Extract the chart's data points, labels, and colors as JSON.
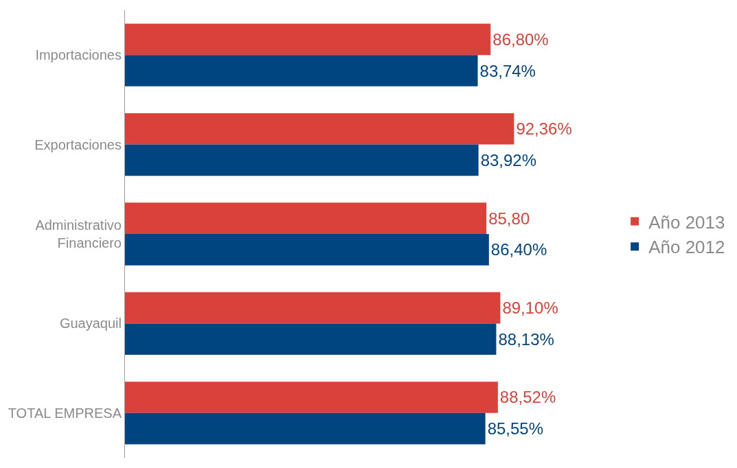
{
  "chart_data": {
    "type": "bar",
    "orientation": "horizontal",
    "categories": [
      "Importaciones",
      "Exportaciones",
      "Administrativo Financiero",
      "Guayaquil",
      "TOTAL EMPRESA"
    ],
    "series": [
      {
        "name": "Año 2013",
        "color": "#d9423a",
        "values": [
          86.8,
          92.36,
          85.8,
          89.1,
          88.52
        ],
        "value_labels": [
          "86,80%",
          "92,36%",
          "85,80",
          "89,10%",
          "88,52%"
        ]
      },
      {
        "name": "Año 2012",
        "color": "#00457f",
        "values": [
          83.74,
          83.92,
          86.4,
          88.13,
          85.55
        ],
        "value_labels": [
          "83,74%",
          "83,92%",
          "86,40%",
          "88,13%",
          "85,55%"
        ]
      }
    ],
    "legend": "right"
  }
}
